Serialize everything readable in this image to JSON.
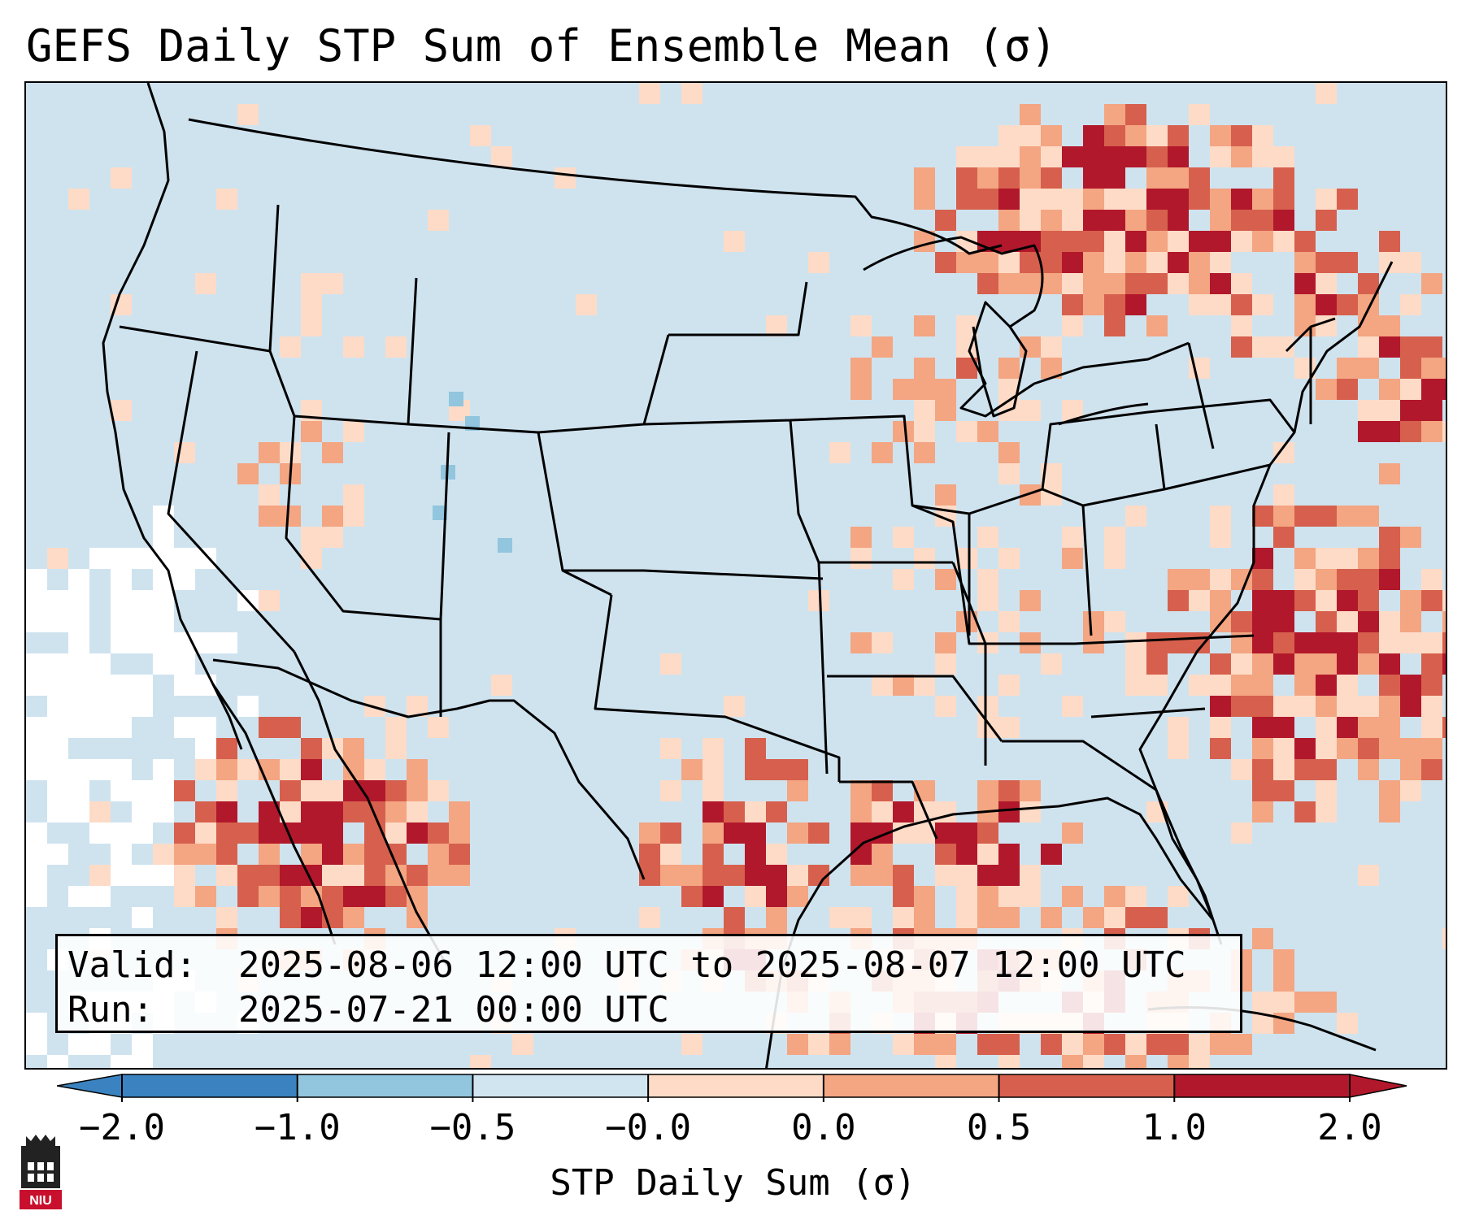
{
  "title": "GEFS Daily STP Sum of Ensemble Mean (σ)",
  "info": {
    "valid_label": "Valid:",
    "valid_value": "2025-08-06 12:00 UTC to 2025-08-07 12:00 UTC",
    "run_label": "Run:",
    "run_value": "2025-07-21 00:00 UTC"
  },
  "colorbar": {
    "label": "STP Daily Sum (σ)",
    "ticks": [
      "−2.0",
      "−1.0",
      "−0.5",
      "−0.0",
      "0.0",
      "0.5",
      "1.0",
      "2.0"
    ],
    "colors": [
      "#3a83c0",
      "#92c5de",
      "#d1e5f0",
      "#f7f7f7",
      "#fddbc7",
      "#f4a582",
      "#d6604d",
      "#b2182b"
    ],
    "extend": "both"
  },
  "map": {
    "region": "Contiguous United States with southern Canada, northern Mexico and Gulf of Mexico",
    "background_color": "#cfe3ef",
    "highlights": [
      {
        "area": "Quebec / Ontario (north-east)",
        "level": "1.0 to 2.0"
      },
      {
        "area": "Atlantic off North Carolina",
        "level": "1.0 to 2.0"
      },
      {
        "area": "Gulf coast Louisiana / Texas",
        "level": "1.0 to 2.0"
      },
      {
        "area": "Northern Mexico / Sonora",
        "level": "1.0 to 2.0"
      },
      {
        "area": "Upper Midwest / Great Lakes",
        "level": "0.0 to 0.5"
      },
      {
        "area": "Pacific off California",
        "level": "-0.0 to 0.0"
      }
    ]
  },
  "logo": {
    "text": "NIU",
    "name": "niu-logo"
  }
}
